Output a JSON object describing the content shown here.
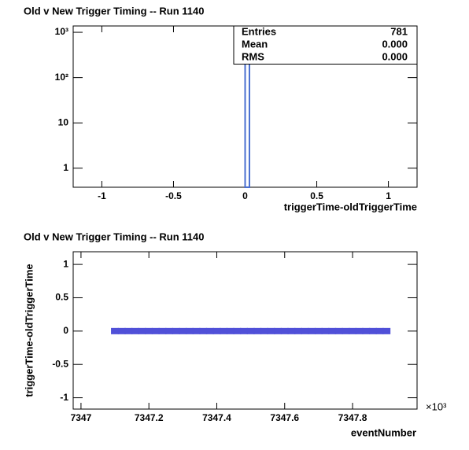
{
  "chart_data": [
    {
      "type": "histogram",
      "title": "Old v New Trigger Timing -- Run 1140",
      "x_label": "triggerTime-oldTriggerTime",
      "bins": [
        0,
        0.03
      ],
      "counts": [
        781
      ],
      "color": "#4a6fd0",
      "xlim": [
        -1.2,
        1.2
      ],
      "xticks": [
        -1,
        -0.5,
        0,
        0.5,
        1
      ],
      "ylim": [
        0.38,
        1380
      ],
      "log_y": true,
      "yticks": [
        1,
        10,
        {
          "value": 100,
          "label": "10²"
        },
        {
          "value": 1000,
          "label": "10³"
        }
      ],
      "stats": [
        {
          "name": "Entries",
          "value": "781"
        },
        {
          "name": "Mean",
          "value": "0.000"
        },
        {
          "name": "RMS",
          "value": "0.000"
        }
      ]
    },
    {
      "type": "scatter",
      "title": "Old v New Trigger Timing -- Run 1140",
      "x_label": "eventNumber",
      "y_label": "triggerTime-oldTriggerTime",
      "x_exponent": "×10³",
      "color": "#5050d8",
      "x": [
        7347.1,
        7347.12,
        7347.14,
        7347.16,
        7347.18,
        7347.2,
        7347.22,
        7347.24,
        7347.26,
        7347.28,
        7347.3,
        7347.32,
        7347.34,
        7347.36,
        7347.38,
        7347.4,
        7347.42,
        7347.44,
        7347.46,
        7347.48,
        7347.5,
        7347.52,
        7347.54,
        7347.56,
        7347.58,
        7347.6,
        7347.62,
        7347.64,
        7347.66,
        7347.68,
        7347.7,
        7347.72,
        7347.74,
        7347.76,
        7347.78,
        7347.8,
        7347.82,
        7347.84,
        7347.86,
        7347.88,
        7347.9
      ],
      "values": [
        0,
        0,
        0,
        0,
        0,
        0,
        0,
        0,
        0,
        0,
        0,
        0,
        0,
        0,
        0,
        0,
        0,
        0,
        0,
        0,
        0,
        0,
        0,
        0,
        0,
        0,
        0,
        0,
        0,
        0,
        0,
        0,
        0,
        0,
        0,
        0,
        0,
        0,
        0,
        0,
        0
      ],
      "xlim": [
        7346.977,
        7347.99
      ],
      "xticks": [
        7347,
        7347.2,
        7347.4,
        7347.6,
        7347.8
      ],
      "ylim": [
        -1.17,
        1.19
      ],
      "yticks": [
        -1,
        -0.5,
        0,
        0.5,
        1
      ]
    }
  ]
}
